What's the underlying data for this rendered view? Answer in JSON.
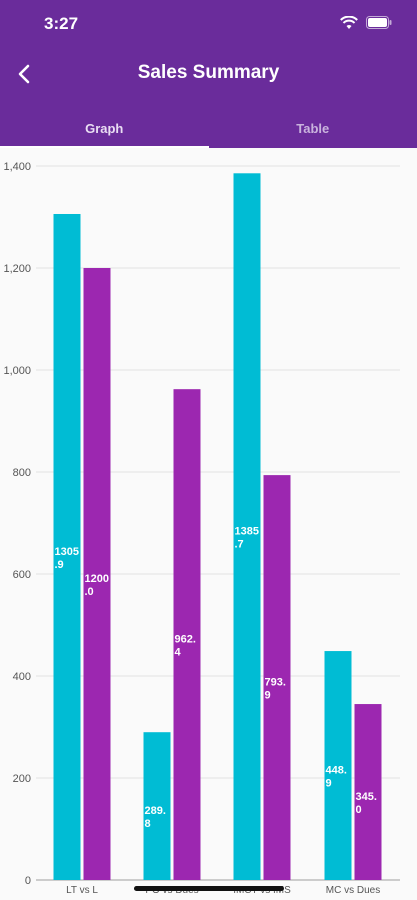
{
  "status": {
    "time": "3:27"
  },
  "header": {
    "title": "Sales Summary"
  },
  "tabs": [
    {
      "label": "Graph",
      "active": true
    },
    {
      "label": "Table",
      "active": false
    }
  ],
  "colors": {
    "appbar": "#6a2c9b",
    "series1": "#00bcd4",
    "series2": "#9c27b0"
  },
  "chart_data": {
    "type": "bar",
    "categories": [
      "LT vs L",
      "PO vs Dues",
      "IMCT vs IMS",
      "MC vs Dues"
    ],
    "series": [
      {
        "values": [
          1305.9,
          289.8,
          1385.7,
          448.9
        ],
        "labels": [
          "1305.9",
          "289.8",
          "1385.7",
          "448.9"
        ],
        "color": "#00bcd4"
      },
      {
        "values": [
          1200.0,
          962.4,
          793.9,
          345.0
        ],
        "labels": [
          "1200.0",
          "962.4",
          "793.9",
          "345.0"
        ],
        "color": "#9c27b0"
      }
    ],
    "yticks": [
      "0",
      "200",
      "400",
      "600",
      "800",
      "1,000",
      "1,200",
      "1,400"
    ],
    "ylim": [
      0,
      1400
    ],
    "grid": true,
    "title": "",
    "xlabel": "",
    "ylabel": ""
  }
}
